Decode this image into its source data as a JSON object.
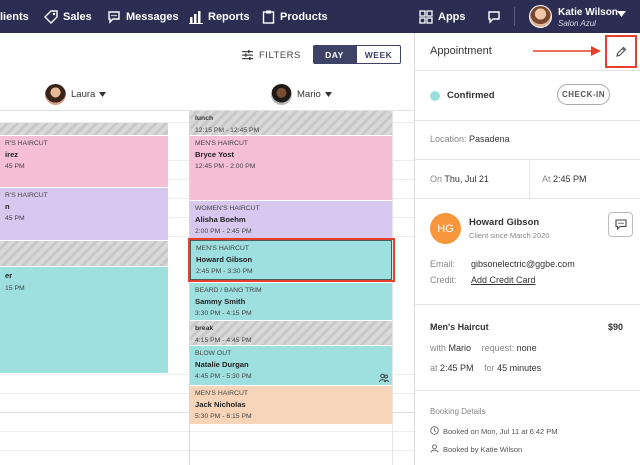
{
  "nav": {
    "clients": "lients",
    "sales": "Sales",
    "messages": "Messages",
    "reports": "Reports",
    "products": "Products",
    "apps": "Apps",
    "user_name": "Katie Wilson",
    "user_salon": "Salon Azul"
  },
  "toolbar": {
    "filters": "FILTERS",
    "day": "DAY",
    "week": "WEEK"
  },
  "staff": [
    {
      "name": "Laura"
    },
    {
      "name": "Mario"
    }
  ],
  "laura_blocks": [
    {
      "service": "R'S HAIRCUT",
      "client": "irez",
      "time": ""
    },
    {
      "service": "R'S HAIRCUT",
      "client": "n",
      "time": "45 PM"
    },
    {
      "service": "",
      "client": "er",
      "time": "15 PM"
    }
  ],
  "laura_block_extra": {
    "b1_time": "45 PM",
    "b2_time": "45 PM",
    "b3_time": "15 PM"
  },
  "mario_blocks": [
    {
      "service": "lunch",
      "client": "",
      "time": "12:15 PM - 12:45 PM"
    },
    {
      "service": "MEN'S HAIRCUT",
      "client": "Bryce Yost",
      "time": "12:45 PM - 2:00 PM"
    },
    {
      "service": "WOMEN'S HAIRCUT",
      "client": "Alisha Boehm",
      "time": "2:00 PM - 2:45 PM"
    },
    {
      "service": "MEN'S HAIRCUT",
      "client": "Howard Gibson",
      "time": "2:45 PM - 3:30 PM"
    },
    {
      "service": "BEARD / BANG TRIM",
      "client": "Sammy Smith",
      "time": "3:30 PM - 4:15 PM"
    },
    {
      "service": "break",
      "client": "",
      "time": "4:15 PM - 4:45 PM"
    },
    {
      "service": "BLOW OUT",
      "client": "Natalie Durgan",
      "time": "4:45 PM - 5:30 PM"
    },
    {
      "service": "MEN'S HAIRCUT",
      "client": "Jack Nicholas",
      "time": "5:30 PM - 6:15 PM"
    }
  ],
  "panel": {
    "title": "Appointment",
    "status": "Confirmed",
    "checkin": "CHECK-IN",
    "location_label": "Location:",
    "location": "Pasadena",
    "on_label": "On",
    "date": "Thu, Jul 21",
    "at_label": "At",
    "time": "2:45 PM",
    "client_initials": "HG",
    "client_name": "Howard Gibson",
    "client_since": "Client since March 2020",
    "email_label": "Email:",
    "email": "gibsonelectric@ggbe.com",
    "credit_label": "Credit:",
    "credit_link": "Add Credit Card",
    "service_name": "Men's Haircut",
    "price": "$90",
    "with_label": "with",
    "stylist": "Mario",
    "request_label": "request:",
    "request": "none",
    "at2_label": "at",
    "start": "2:45 PM",
    "for_label": "for",
    "duration": "45 minutes",
    "booking_title": "Booking Details",
    "booked_on": "Booked on Mon, Jul 11 at 6:42 PM",
    "booked_by": "Booked by Katie Wilson"
  },
  "colors": {
    "nav_bg": "#2b2d52",
    "highlight": "#e5402d",
    "confirmed": "#9adfe0",
    "client_avatar": "#f7963b"
  }
}
